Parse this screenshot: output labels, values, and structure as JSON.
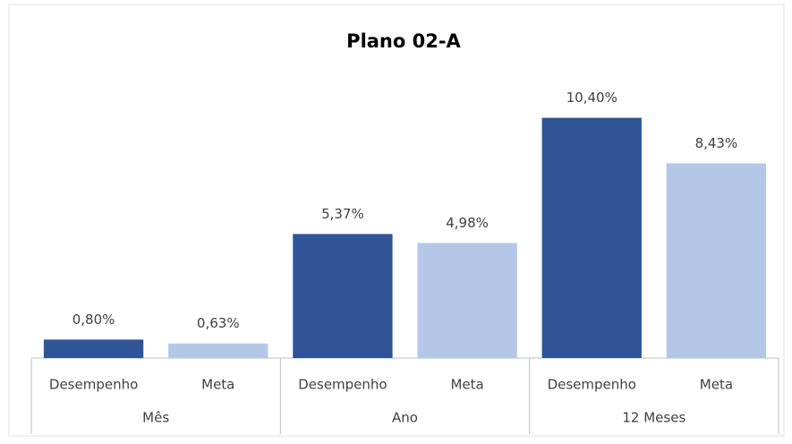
{
  "chart_data": {
    "type": "bar",
    "title": "Plano 02-A",
    "groups": [
      {
        "name": "Mês",
        "categories": [
          "Desempenho",
          "Meta"
        ],
        "values": [
          0.8,
          0.63
        ],
        "value_labels": [
          "0,80%",
          "0,63%"
        ]
      },
      {
        "name": "Ano",
        "categories": [
          "Desempenho",
          "Meta"
        ],
        "values": [
          5.37,
          4.98
        ],
        "value_labels": [
          "5,37%",
          "4,98%"
        ]
      },
      {
        "name": "12 Meses",
        "categories": [
          "Desempenho",
          "Meta"
        ],
        "values": [
          10.4,
          8.43
        ],
        "value_labels": [
          "10,40%",
          "8,43%"
        ]
      }
    ],
    "colors": [
      "#2f5597",
      "#b4c7e7"
    ],
    "ylim": [
      0,
      12.4
    ]
  }
}
